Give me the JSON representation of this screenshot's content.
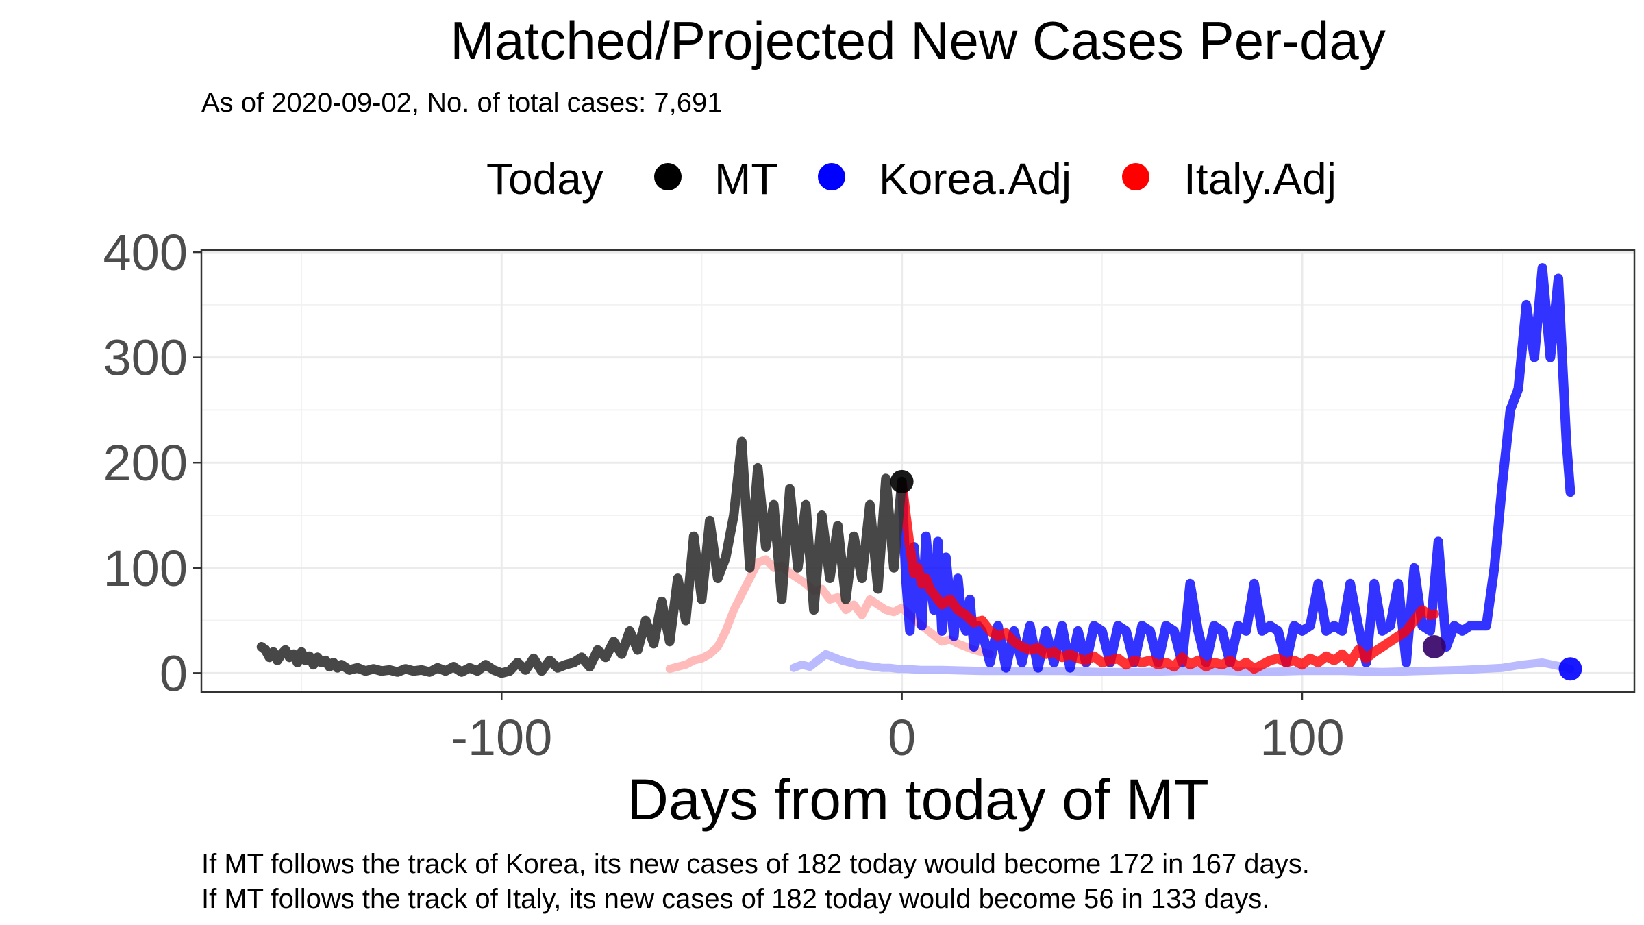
{
  "chart_data": {
    "type": "line",
    "title": "Matched/Projected New Cases Per-day",
    "subtitle": "As of 2020-09-02, No. of total cases: 7,691",
    "xlabel": "Days from today of MT",
    "ylabel": "",
    "xlim": [
      -175,
      183
    ],
    "ylim": [
      -18,
      402
    ],
    "x_ticks": [
      -100,
      0,
      100
    ],
    "x_tick_labels": [
      "-100",
      "0",
      "100"
    ],
    "y_ticks": [
      0,
      100,
      200,
      300,
      400
    ],
    "y_tick_labels": [
      "0",
      "100",
      "200",
      "300",
      "400"
    ],
    "grid": true,
    "legend": {
      "position": "top",
      "title": "Today",
      "entries": [
        {
          "label": "MT",
          "color": "#000000"
        },
        {
          "label": "Korea.Adj",
          "color": "#0000ff"
        },
        {
          "label": "Italy.Adj",
          "color": "#ff0000"
        }
      ]
    },
    "series": [
      {
        "name": "MT",
        "role": "actual",
        "color": "#333333",
        "x": [
          -160,
          -159,
          -158,
          -157,
          -156,
          -155,
          -154,
          -153,
          -152,
          -151,
          -150,
          -149,
          -148,
          -147,
          -146,
          -145,
          -144,
          -143,
          -142,
          -141,
          -140,
          -138,
          -136,
          -134,
          -132,
          -130,
          -128,
          -126,
          -124,
          -122,
          -120,
          -118,
          -116,
          -114,
          -112,
          -110,
          -108,
          -106,
          -104,
          -102,
          -100,
          -98,
          -96,
          -94,
          -92,
          -90,
          -88,
          -86,
          -84,
          -82,
          -80,
          -78,
          -76,
          -74,
          -72,
          -70,
          -68,
          -66,
          -64,
          -62,
          -60,
          -58,
          -56,
          -54,
          -52,
          -50,
          -48,
          -46,
          -44,
          -42,
          -40,
          -38,
          -36,
          -34,
          -32,
          -30,
          -28,
          -26,
          -24,
          -22,
          -20,
          -18,
          -16,
          -14,
          -12,
          -10,
          -8,
          -6,
          -4,
          -2,
          0
        ],
        "y": [
          25,
          22,
          15,
          20,
          12,
          18,
          22,
          15,
          18,
          10,
          20,
          12,
          16,
          8,
          15,
          10,
          12,
          6,
          10,
          5,
          8,
          3,
          5,
          2,
          4,
          2,
          3,
          1,
          4,
          2,
          3,
          1,
          5,
          2,
          6,
          1,
          5,
          2,
          8,
          3,
          0,
          2,
          10,
          3,
          14,
          2,
          12,
          5,
          8,
          10,
          15,
          6,
          22,
          15,
          30,
          18,
          40,
          22,
          50,
          28,
          68,
          30,
          90,
          50,
          130,
          70,
          145,
          90,
          110,
          150,
          220,
          100,
          195,
          120,
          160,
          70,
          175,
          100,
          160,
          60,
          150,
          90,
          140,
          70,
          130,
          90,
          160,
          80,
          185,
          100,
          182
        ]
      },
      {
        "name": "Korea.Adj",
        "role": "projection",
        "color": "#0000ff",
        "x": [
          0,
          1,
          2,
          3,
          4,
          5,
          6,
          7,
          8,
          9,
          10,
          11,
          12,
          13,
          14,
          15,
          16,
          17,
          18,
          19,
          20,
          22,
          24,
          26,
          28,
          30,
          32,
          34,
          36,
          38,
          40,
          42,
          44,
          46,
          48,
          50,
          52,
          54,
          56,
          58,
          60,
          62,
          64,
          66,
          68,
          70,
          72,
          74,
          76,
          78,
          80,
          82,
          84,
          86,
          88,
          90,
          92,
          94,
          96,
          98,
          100,
          102,
          104,
          106,
          108,
          110,
          112,
          114,
          116,
          118,
          120,
          122,
          124,
          126,
          128,
          130,
          132,
          134,
          136,
          138,
          140,
          142,
          144,
          146,
          148,
          150,
          152,
          154,
          156,
          158,
          160,
          162,
          164,
          166,
          167
        ],
        "y": [
          182,
          90,
          40,
          120,
          80,
          45,
          130,
          90,
          60,
          125,
          40,
          110,
          70,
          35,
          90,
          50,
          40,
          70,
          25,
          45,
          40,
          10,
          45,
          5,
          40,
          10,
          45,
          5,
          40,
          10,
          45,
          5,
          40,
          10,
          45,
          40,
          10,
          45,
          40,
          10,
          45,
          40,
          10,
          45,
          40,
          10,
          85,
          40,
          10,
          45,
          40,
          10,
          45,
          40,
          85,
          40,
          45,
          40,
          10,
          45,
          40,
          45,
          85,
          40,
          45,
          40,
          85,
          45,
          10,
          85,
          40,
          45,
          85,
          10,
          100,
          45,
          40,
          125,
          25,
          45,
          40,
          45,
          45,
          45,
          100,
          180,
          250,
          270,
          350,
          300,
          385,
          300,
          375,
          220,
          172
        ]
      },
      {
        "name": "Italy.Adj",
        "role": "projection",
        "color": "#ff0000",
        "x": [
          0,
          1,
          2,
          3,
          4,
          5,
          6,
          7,
          8,
          9,
          10,
          12,
          14,
          16,
          18,
          20,
          22,
          24,
          26,
          28,
          30,
          32,
          34,
          36,
          38,
          40,
          42,
          44,
          46,
          48,
          50,
          52,
          54,
          56,
          58,
          60,
          62,
          64,
          66,
          68,
          70,
          72,
          74,
          76,
          78,
          80,
          82,
          84,
          86,
          88,
          90,
          92,
          94,
          96,
          98,
          100,
          102,
          104,
          106,
          108,
          110,
          112,
          114,
          116,
          118,
          120,
          122,
          124,
          126,
          128,
          130,
          132,
          133
        ],
        "y": [
          182,
          150,
          120,
          95,
          100,
          85,
          90,
          80,
          75,
          70,
          65,
          70,
          60,
          55,
          48,
          50,
          40,
          35,
          38,
          30,
          25,
          22,
          24,
          18,
          20,
          15,
          18,
          14,
          12,
          16,
          10,
          12,
          14,
          8,
          12,
          10,
          12,
          8,
          10,
          6,
          15,
          8,
          12,
          6,
          10,
          8,
          12,
          6,
          10,
          4,
          8,
          12,
          14,
          10,
          12,
          8,
          14,
          10,
          16,
          12,
          18,
          10,
          22,
          14,
          20,
          25,
          30,
          35,
          40,
          50,
          60,
          55,
          56
        ]
      },
      {
        "name": "Italy.Adj",
        "role": "history",
        "color": "#ffb3b3",
        "x": [
          -58,
          -56,
          -54,
          -52,
          -50,
          -48,
          -46,
          -44,
          -42,
          -40,
          -38,
          -36,
          -34,
          -32,
          -30,
          -28,
          -26,
          -24,
          -22,
          -20,
          -18,
          -16,
          -14,
          -12,
          -10,
          -8,
          -6,
          -4,
          -2,
          0,
          2,
          4,
          6,
          8,
          10,
          12,
          14,
          16,
          18,
          20,
          22
        ],
        "y": [
          4,
          6,
          8,
          12,
          14,
          18,
          25,
          40,
          60,
          75,
          90,
          105,
          108,
          100,
          102,
          95,
          90,
          85,
          78,
          80,
          70,
          72,
          60,
          65,
          55,
          70,
          65,
          60,
          58,
          62,
          55,
          48,
          42,
          36,
          30,
          32,
          28,
          25,
          22,
          20,
          18
        ]
      },
      {
        "name": "Korea.Adj",
        "role": "history",
        "color": "#b3b3ff",
        "x": [
          -27,
          -25,
          -23,
          -21,
          -19,
          -17,
          -15,
          -13,
          -11,
          -9,
          -7,
          -5,
          -3,
          -1,
          1,
          5,
          10,
          20,
          30,
          40,
          50,
          60,
          70,
          80,
          90,
          100,
          110,
          120,
          130,
          140,
          150,
          155,
          160,
          165,
          167
        ],
        "y": [
          5,
          8,
          6,
          12,
          18,
          15,
          12,
          10,
          8,
          7,
          6,
          5,
          5,
          4,
          4,
          3,
          3,
          2,
          2,
          2,
          1,
          1,
          2,
          2,
          1,
          2,
          2,
          1,
          2,
          3,
          5,
          8,
          10,
          6,
          4
        ]
      }
    ],
    "today_points": [
      {
        "x": 0,
        "y": 182,
        "color": "#000000"
      },
      {
        "x": 133,
        "y": 25,
        "color": "#330066"
      },
      {
        "x": 167,
        "y": 4,
        "color": "#0000ff"
      }
    ]
  },
  "caption": {
    "line1": "If MT follows the track of Korea, its new cases of 182 today would become 172 in 167 days.",
    "line2": "If MT follows the track of Italy, its new cases of 182 today would become 56 in 133 days."
  }
}
